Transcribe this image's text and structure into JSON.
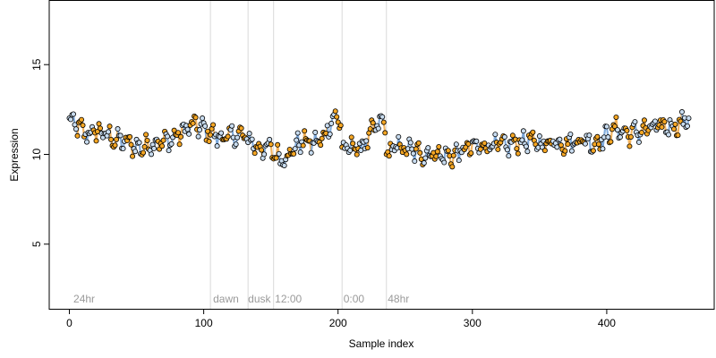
{
  "chart_data": {
    "type": "scatter",
    "title": "",
    "xlabel": "Sample index",
    "ylabel": "Expression",
    "xlim": [
      -15,
      480
    ],
    "ylim": [
      1.4,
      18.6
    ],
    "x_ticks": [
      0,
      100,
      200,
      300,
      400
    ],
    "y_ticks": [
      5,
      10,
      15
    ],
    "grid": false,
    "colors": {
      "point_fill_light": "#c8dcf0",
      "point_fill_orange": "#f5a623",
      "line_blue": "#6f9fd6",
      "line_orange": "#f0a848",
      "separator": "#d9d9d9",
      "annotation": "#9a9a9a"
    },
    "separators": [
      105,
      133,
      152,
      203,
      236
    ],
    "annotations": [
      {
        "x": 3,
        "text": "24hr"
      },
      {
        "x": 107,
        "text": "dawn"
      },
      {
        "x": 133,
        "text": "dusk"
      },
      {
        "x": 153,
        "text": "12:00"
      },
      {
        "x": 204,
        "text": "0:00"
      },
      {
        "x": 237,
        "text": "48hr"
      }
    ],
    "series": {
      "anchors": [
        [
          0,
          11.9
        ],
        [
          5,
          11.6
        ],
        [
          10,
          11.3
        ],
        [
          15,
          11.1
        ],
        [
          20,
          11.3
        ],
        [
          25,
          11.2
        ],
        [
          30,
          11.0
        ],
        [
          35,
          10.8
        ],
        [
          40,
          10.7
        ],
        [
          45,
          10.6
        ],
        [
          50,
          10.4
        ],
        [
          55,
          10.4
        ],
        [
          60,
          10.6
        ],
        [
          65,
          10.7
        ],
        [
          70,
          10.7
        ],
        [
          75,
          10.8
        ],
        [
          80,
          11.0
        ],
        [
          85,
          11.3
        ],
        [
          90,
          11.6
        ],
        [
          95,
          11.6
        ],
        [
          100,
          11.4
        ],
        [
          105,
          11.2
        ],
        [
          110,
          11.0
        ],
        [
          115,
          10.9
        ],
        [
          120,
          11.0
        ],
        [
          125,
          11.1
        ],
        [
          130,
          11.0
        ],
        [
          134,
          10.8
        ],
        [
          140,
          10.4
        ],
        [
          145,
          10.3
        ],
        [
          150,
          10.3
        ],
        [
          153,
          10.0
        ],
        [
          158,
          9.8
        ],
        [
          162,
          9.9
        ],
        [
          166,
          10.2
        ],
        [
          170,
          10.6
        ],
        [
          175,
          10.8
        ],
        [
          180,
          10.6
        ],
        [
          185,
          10.7
        ],
        [
          190,
          11.0
        ],
        [
          193,
          11.6
        ],
        [
          196,
          12.0
        ],
        [
          200,
          12.0
        ],
        [
          202,
          11.8
        ],
        [
          203,
          10.3
        ],
        [
          206,
          10.2
        ],
        [
          210,
          10.5
        ],
        [
          215,
          10.3
        ],
        [
          220,
          10.6
        ],
        [
          225,
          11.2
        ],
        [
          230,
          11.7
        ],
        [
          235,
          11.8
        ],
        [
          236,
          10.0
        ],
        [
          240,
          10.2
        ],
        [
          245,
          10.5
        ],
        [
          250,
          10.3
        ],
        [
          255,
          10.2
        ],
        [
          260,
          10.1
        ],
        [
          265,
          10.0
        ],
        [
          270,
          10.1
        ],
        [
          275,
          10.0
        ],
        [
          280,
          9.9
        ],
        [
          285,
          9.9
        ],
        [
          290,
          10.1
        ],
        [
          295,
          10.3
        ],
        [
          300,
          10.4
        ],
        [
          305,
          10.4
        ],
        [
          310,
          10.5
        ],
        [
          315,
          10.6
        ],
        [
          320,
          10.5
        ],
        [
          325,
          10.4
        ],
        [
          330,
          10.6
        ],
        [
          335,
          10.7
        ],
        [
          340,
          10.8
        ],
        [
          345,
          10.7
        ],
        [
          350,
          10.6
        ],
        [
          355,
          10.6
        ],
        [
          360,
          10.8
        ],
        [
          365,
          10.7
        ],
        [
          370,
          10.6
        ],
        [
          375,
          10.7
        ],
        [
          380,
          10.8
        ],
        [
          385,
          10.8
        ],
        [
          390,
          10.6
        ],
        [
          395,
          10.8
        ],
        [
          400,
          11.0
        ],
        [
          405,
          11.4
        ],
        [
          410,
          11.4
        ],
        [
          415,
          11.1
        ],
        [
          420,
          11.2
        ],
        [
          425,
          11.3
        ],
        [
          430,
          11.4
        ],
        [
          435,
          11.5
        ],
        [
          440,
          11.5
        ],
        [
          445,
          11.6
        ],
        [
          450,
          11.6
        ],
        [
          455,
          11.7
        ],
        [
          460,
          12.0
        ]
      ],
      "n_points": 462,
      "wiggle_amplitude": 0.55
    }
  }
}
